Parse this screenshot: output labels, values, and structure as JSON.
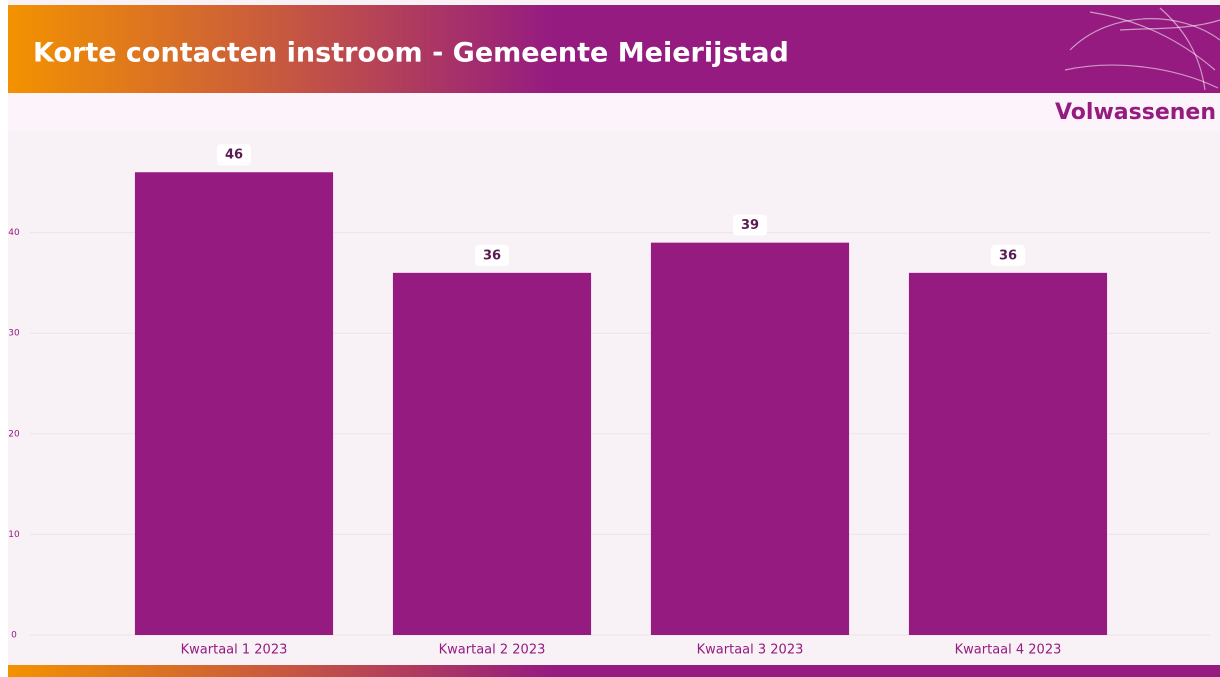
{
  "chart_data": {
    "type": "bar",
    "title": "Korte contacten instroom - Gemeente Meierijstad",
    "subtitle": "Volwassenen",
    "categories": [
      "Kwartaal 1 2023",
      "Kwartaal 2 2023",
      "Kwartaal 3 2023",
      "Kwartaal 4 2023"
    ],
    "values": [
      46,
      36,
      39,
      36
    ],
    "color": "#951b81",
    "ylim": [
      0,
      50
    ],
    "yticks": [
      0,
      10,
      20,
      30,
      40
    ],
    "grid": true
  }
}
